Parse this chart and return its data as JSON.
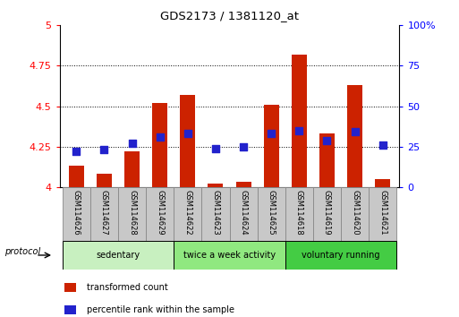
{
  "title": "GDS2173 / 1381120_at",
  "samples": [
    "GSM114626",
    "GSM114627",
    "GSM114628",
    "GSM114629",
    "GSM114622",
    "GSM114623",
    "GSM114624",
    "GSM114625",
    "GSM114618",
    "GSM114619",
    "GSM114620",
    "GSM114621"
  ],
  "transformed_count": [
    4.13,
    4.08,
    4.22,
    4.52,
    4.57,
    4.02,
    4.03,
    4.51,
    4.82,
    4.33,
    4.63,
    4.05
  ],
  "percentile_rank": [
    22,
    23,
    27,
    31,
    33,
    24,
    25,
    33,
    35,
    29,
    34,
    26
  ],
  "groups": [
    {
      "label": "sedentary",
      "indices": [
        0,
        1,
        2,
        3
      ],
      "color": "#c8f0c0"
    },
    {
      "label": "twice a week activity",
      "indices": [
        4,
        5,
        6,
        7
      ],
      "color": "#90e880"
    },
    {
      "label": "voluntary running",
      "indices": [
        8,
        9,
        10,
        11
      ],
      "color": "#44cc44"
    }
  ],
  "bar_color": "#cc2200",
  "dot_color": "#2222cc",
  "ylim_left": [
    4.0,
    5.0
  ],
  "ylim_right": [
    0,
    100
  ],
  "yticks_left": [
    4.0,
    4.25,
    4.5,
    4.75,
    5.0
  ],
  "yticks_left_labels": [
    "4",
    "4.25",
    "4.5",
    "4.75",
    "5"
  ],
  "yticks_right": [
    0,
    25,
    50,
    75,
    100
  ],
  "yticks_right_labels": [
    "0",
    "25",
    "50",
    "75",
    "100%"
  ],
  "bar_width": 0.55,
  "dot_size": 30,
  "protocol_label": "protocol",
  "legend": [
    {
      "label": "transformed count",
      "color": "#cc2200"
    },
    {
      "label": "percentile rank within the sample",
      "color": "#2222cc"
    }
  ],
  "label_box_color": "#c8c8c8",
  "label_box_edge": "#888888",
  "grid_yticks": [
    4.25,
    4.5,
    4.75
  ]
}
